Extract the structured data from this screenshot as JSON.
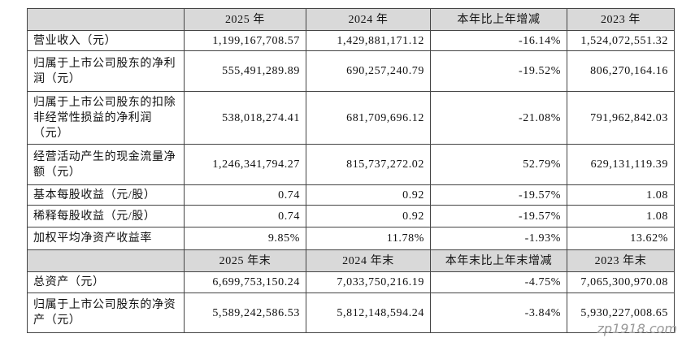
{
  "sections": [
    {
      "header": [
        "2025 年",
        "2024 年",
        "本年比上年增减",
        "2023 年"
      ],
      "rows": [
        [
          "营业收入（元）",
          "1,199,167,708.57",
          "1,429,881,171.12",
          "-16.14%",
          "1,524,072,551.32"
        ],
        [
          "归属于上市公司股东的净利\n润（元）",
          "555,491,289.89",
          "690,257,240.79",
          "-19.52%",
          "806,270,164.16"
        ],
        [
          "归属于上市公司股东的扣除\n非经常性损益的净利润\n（元）",
          "538,018,274.41",
          "681,709,696.12",
          "-21.08%",
          "791,962,842.03"
        ],
        [
          "经营活动产生的现金流量净\n额（元）",
          "1,246,341,794.27",
          "815,737,272.02",
          "52.79%",
          "629,131,119.39"
        ],
        [
          "基本每股收益（元/股）",
          "0.74",
          "0.92",
          "-19.57%",
          "1.08"
        ],
        [
          "稀释每股收益（元/股）",
          "0.74",
          "0.92",
          "-19.57%",
          "1.08"
        ],
        [
          "加权平均净资产收益率",
          "9.85%",
          "11.78%",
          "-1.93%",
          "13.62%"
        ]
      ]
    },
    {
      "header": [
        "2025 年末",
        "2024 年末",
        "本年末比上年末增减",
        "2023 年末"
      ],
      "rows": [
        [
          "总资产（元）",
          "6,699,753,150.24",
          "7,033,750,216.19",
          "-4.75%",
          "7,065,300,970.08"
        ],
        [
          "归属于上市公司股东的净资\n产（元）",
          "5,589,242,586.53",
          "5,812,148,594.24",
          "-3.84%",
          "5,930,227,008.65"
        ]
      ]
    }
  ],
  "watermark": "zp1918.com"
}
